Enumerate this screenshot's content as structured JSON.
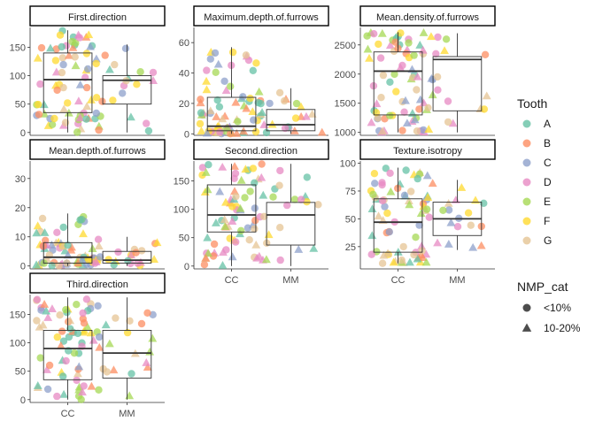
{
  "chart_data": {
    "type": "faceted box + jitter scatter",
    "x_categories": [
      "CC",
      "MM"
    ],
    "colors": {
      "A": "#66C2A5",
      "B": "#FC8D62",
      "C": "#8DA0CB",
      "D": "#E78AC3",
      "E": "#A6D854",
      "F": "#FFD92F",
      "G": "#E5C494"
    },
    "legend": {
      "tooth_title": "Tooth",
      "tooth_items": [
        "A",
        "B",
        "C",
        "D",
        "E",
        "F",
        "G"
      ],
      "nmp_title": "NMP_cat",
      "nmp_items": [
        {
          "label": "<10%",
          "shape": "circle"
        },
        {
          "label": "10-20%",
          "shape": "triangle"
        }
      ]
    },
    "facets": [
      {
        "title": "First.direction",
        "ylim": [
          -5,
          185
        ],
        "yticks": [
          0,
          50,
          100,
          150
        ],
        "boxes": {
          "CC": {
            "q1": 35,
            "median": 93,
            "q3": 140,
            "lw": 0,
            "uw": 180
          },
          "MM": {
            "q1": 50,
            "median": 92,
            "q3": 100,
            "lw": 0,
            "uw": 155
          }
        }
      },
      {
        "title": "Maximum.depth.of.furrows",
        "ylim": [
          -1,
          70
        ],
        "yticks": [
          0,
          20,
          40,
          60
        ],
        "boxes": {
          "CC": {
            "q1": 2,
            "median": 5,
            "q3": 24,
            "lw": 0,
            "uw": 57
          },
          "MM": {
            "q1": 2,
            "median": 6,
            "q3": 16,
            "lw": 0,
            "uw": 30
          }
        }
      },
      {
        "title": "Mean.density.of.furrows",
        "ylim": [
          950,
          2800
        ],
        "yticks": [
          1000,
          1500,
          2000,
          2500
        ],
        "boxes": {
          "CC": {
            "q1": 1300,
            "median": 2050,
            "q3": 2380,
            "lw": 1000,
            "uw": 2720
          },
          "MM": {
            "q1": 1370,
            "median": 2250,
            "q3": 2300,
            "lw": 1000,
            "uw": 2700
          }
        }
      },
      {
        "title": "Mean.depth.of.furrows",
        "ylim": [
          -1,
          36
        ],
        "yticks": [
          0,
          10,
          20,
          30
        ],
        "boxes": {
          "CC": {
            "q1": 1,
            "median": 3,
            "q3": 8,
            "lw": 0,
            "uw": 18
          },
          "MM": {
            "q1": 1,
            "median": 2,
            "q3": 5,
            "lw": 0,
            "uw": 10
          }
        }
      },
      {
        "title": "Second.direction",
        "ylim": [
          -5,
          185
        ],
        "yticks": [
          0,
          50,
          100,
          150
        ],
        "boxes": {
          "CC": {
            "q1": 60,
            "median": 90,
            "q3": 143,
            "lw": 0,
            "uw": 180
          },
          "MM": {
            "q1": 37,
            "median": 90,
            "q3": 112,
            "lw": 0,
            "uw": 180
          }
        }
      },
      {
        "title": "Texture.isotropy",
        "ylim": [
          5,
          102
        ],
        "yticks": [
          25,
          50,
          75,
          100
        ],
        "boxes": {
          "CC": {
            "q1": 20,
            "median": 47,
            "q3": 68,
            "lw": 10,
            "uw": 96
          },
          "MM": {
            "q1": 35,
            "median": 50,
            "q3": 65,
            "lw": 22,
            "uw": 85
          }
        }
      },
      {
        "title": "Third.direction",
        "ylim": [
          -5,
          185
        ],
        "yticks": [
          0,
          50,
          100,
          150
        ],
        "boxes": {
          "CC": {
            "q1": 35,
            "median": 90,
            "q3": 122,
            "lw": 0,
            "uw": 180
          },
          "MM": {
            "q1": 38,
            "median": 82,
            "q3": 122,
            "lw": 0,
            "uw": 180
          }
        }
      }
    ]
  }
}
